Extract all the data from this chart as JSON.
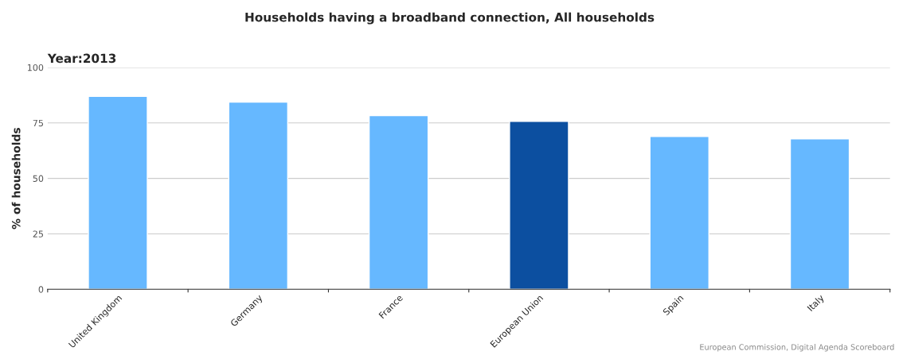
{
  "chart_data": {
    "type": "bar",
    "title": "Households having a broadband connection, All households",
    "subtitle": "Year:2013",
    "ylabel": "% of households",
    "categories": [
      "United Kingdom",
      "Germany",
      "France",
      "European Union",
      "Spain",
      "Italy"
    ],
    "values": [
      87.0,
      84.4,
      78.3,
      75.7,
      68.9,
      67.8
    ],
    "colors": [
      "#66b8ff",
      "#66b8ff",
      "#66b8ff",
      "#0c4fa0",
      "#66b8ff",
      "#66b8ff"
    ],
    "ylim": [
      0,
      100
    ],
    "yticks": [
      0,
      25,
      50,
      75,
      100
    ],
    "grid": "y",
    "annotations": [
      "European Commission, Digital Agenda Scoreboard"
    ]
  }
}
